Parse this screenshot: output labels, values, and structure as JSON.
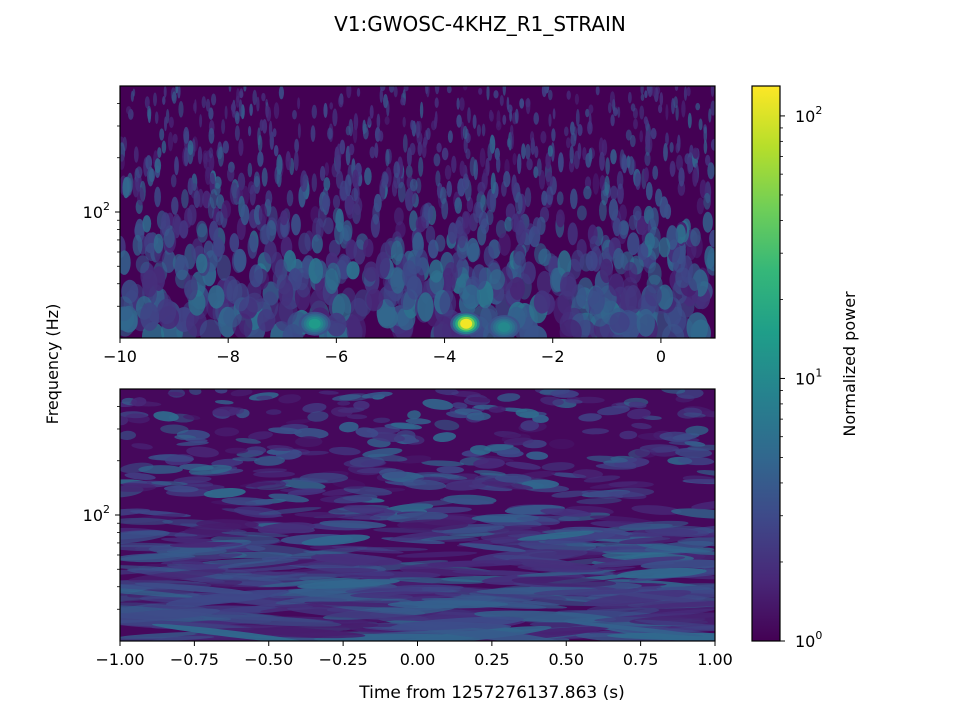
{
  "title": "V1:GWOSC-4KHZ_R1_STRAIN",
  "ylabel": "Frequency (Hz)",
  "colors": {
    "viridis": [
      "#440154",
      "#482878",
      "#3e4989",
      "#31688e",
      "#26828e",
      "#1f9e89",
      "#35b779",
      "#6ece58",
      "#b5de2b",
      "#fde725"
    ]
  },
  "colorbar": {
    "label": "Normalized power",
    "scale": "log",
    "range": [
      1,
      130
    ],
    "ticks": [
      {
        "value": 1,
        "base": "10",
        "exp": "0"
      },
      {
        "value": 10,
        "base": "10",
        "exp": "1"
      },
      {
        "value": 100,
        "base": "10",
        "exp": "2"
      }
    ]
  },
  "chart_data": [
    {
      "type": "heatmap",
      "name": "top-panel",
      "xlabel": "",
      "xlim": [
        -10,
        1
      ],
      "yscale": "log",
      "ylim": [
        20,
        500
      ],
      "xticks": [
        {
          "value": -10,
          "label": "−10"
        },
        {
          "value": -8,
          "label": "−8"
        },
        {
          "value": -6,
          "label": "−6"
        },
        {
          "value": -4,
          "label": "−4"
        },
        {
          "value": -2,
          "label": "−2"
        },
        {
          "value": 0,
          "label": "0"
        }
      ],
      "yticks": [
        {
          "value": 100,
          "base": "10",
          "exp": "2"
        }
      ],
      "hotspots": [
        {
          "time": -3.6,
          "freq": 24,
          "power": 120
        },
        {
          "time": -6.4,
          "freq": 24,
          "power": 14
        },
        {
          "time": -2.9,
          "freq": 23,
          "power": 10
        }
      ]
    },
    {
      "type": "heatmap",
      "name": "bottom-panel",
      "xlabel": "Time from 1257276137.863 (s)",
      "xlim": [
        -1,
        1
      ],
      "yscale": "log",
      "ylim": [
        20,
        500
      ],
      "xticks": [
        {
          "value": -1.0,
          "label": "−1.00"
        },
        {
          "value": -0.75,
          "label": "−0.75"
        },
        {
          "value": -0.5,
          "label": "−0.50"
        },
        {
          "value": -0.25,
          "label": "−0.25"
        },
        {
          "value": 0.0,
          "label": "0.00"
        },
        {
          "value": 0.25,
          "label": "0.25"
        },
        {
          "value": 0.5,
          "label": "0.50"
        },
        {
          "value": 0.75,
          "label": "0.75"
        },
        {
          "value": 1.0,
          "label": "1.00"
        }
      ],
      "yticks": [
        {
          "value": 100,
          "base": "10",
          "exp": "2"
        }
      ],
      "hotspots": []
    }
  ]
}
